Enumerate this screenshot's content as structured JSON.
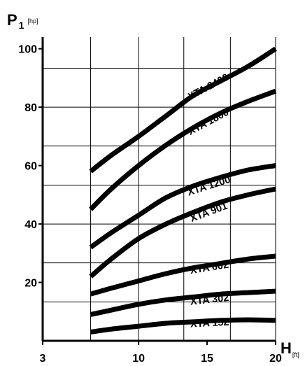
{
  "chart_data": {
    "type": "line",
    "title": "",
    "ylabel": {
      "symbol": "P",
      "subscript": "1",
      "unit": "[hp]"
    },
    "xlabel": {
      "symbol": "H",
      "unit": "[ft]"
    },
    "xlim": [
      3,
      20
    ],
    "ylim": [
      0,
      104
    ],
    "x_ticks": [
      3,
      10,
      15,
      20
    ],
    "y_ticks": [
      20,
      40,
      60,
      80,
      100
    ],
    "x_grid": [
      6.5,
      10,
      13.3,
      16.7,
      20
    ],
    "y_grid": [
      13.3,
      26.7,
      40,
      53.3,
      66.7,
      80,
      93.3
    ],
    "grid": true,
    "legend": "none (series labeled inline)",
    "series": [
      {
        "name": "XTA 2400",
        "label_at": [
          15.2,
          86
        ],
        "points": [
          [
            6.5,
            58
          ],
          [
            8,
            63.5
          ],
          [
            10,
            70
          ],
          [
            12,
            77
          ],
          [
            14,
            84
          ],
          [
            16,
            89
          ],
          [
            18,
            94
          ],
          [
            20,
            100
          ]
        ]
      },
      {
        "name": "XTA 1800",
        "label_at": [
          15.2,
          74
        ],
        "points": [
          [
            6.5,
            45
          ],
          [
            8,
            52
          ],
          [
            10,
            60
          ],
          [
            12,
            67
          ],
          [
            14,
            73
          ],
          [
            16,
            78
          ],
          [
            18,
            82
          ],
          [
            20,
            85.5
          ]
        ]
      },
      {
        "name": "XTA 1200",
        "label_at": [
          15.2,
          52
        ],
        "points": [
          [
            6.5,
            32
          ],
          [
            8,
            37
          ],
          [
            10,
            43
          ],
          [
            12,
            49
          ],
          [
            14,
            53
          ],
          [
            16,
            56
          ],
          [
            18,
            58.5
          ],
          [
            20,
            60
          ]
        ]
      },
      {
        "name": "XTA 901",
        "label_at": [
          15.2,
          43
        ],
        "points": [
          [
            6.5,
            22
          ],
          [
            8,
            28
          ],
          [
            10,
            35
          ],
          [
            12,
            40
          ],
          [
            14,
            44
          ],
          [
            16,
            47.5
          ],
          [
            18,
            50
          ],
          [
            20,
            52
          ]
        ]
      },
      {
        "name": "XTA 602",
        "label_at": [
          15.2,
          24
        ],
        "points": [
          [
            6.5,
            16
          ],
          [
            8,
            18
          ],
          [
            10,
            20.5
          ],
          [
            12,
            23
          ],
          [
            14,
            25
          ],
          [
            16,
            26.5
          ],
          [
            18,
            28
          ],
          [
            20,
            29
          ]
        ]
      },
      {
        "name": "XTA 302",
        "label_at": [
          15.2,
          13
        ],
        "points": [
          [
            6.5,
            9
          ],
          [
            8,
            10.5
          ],
          [
            10,
            12.5
          ],
          [
            12,
            14
          ],
          [
            14,
            15
          ],
          [
            16,
            16
          ],
          [
            18,
            16.5
          ],
          [
            20,
            17
          ]
        ]
      },
      {
        "name": "XTA 152",
        "label_at": [
          15.2,
          5
        ],
        "points": [
          [
            6.5,
            3
          ],
          [
            8,
            4
          ],
          [
            10,
            5
          ],
          [
            12,
            6
          ],
          [
            14,
            6.5
          ],
          [
            16,
            7
          ],
          [
            18,
            7.2
          ],
          [
            20,
            7
          ]
        ]
      }
    ]
  }
}
